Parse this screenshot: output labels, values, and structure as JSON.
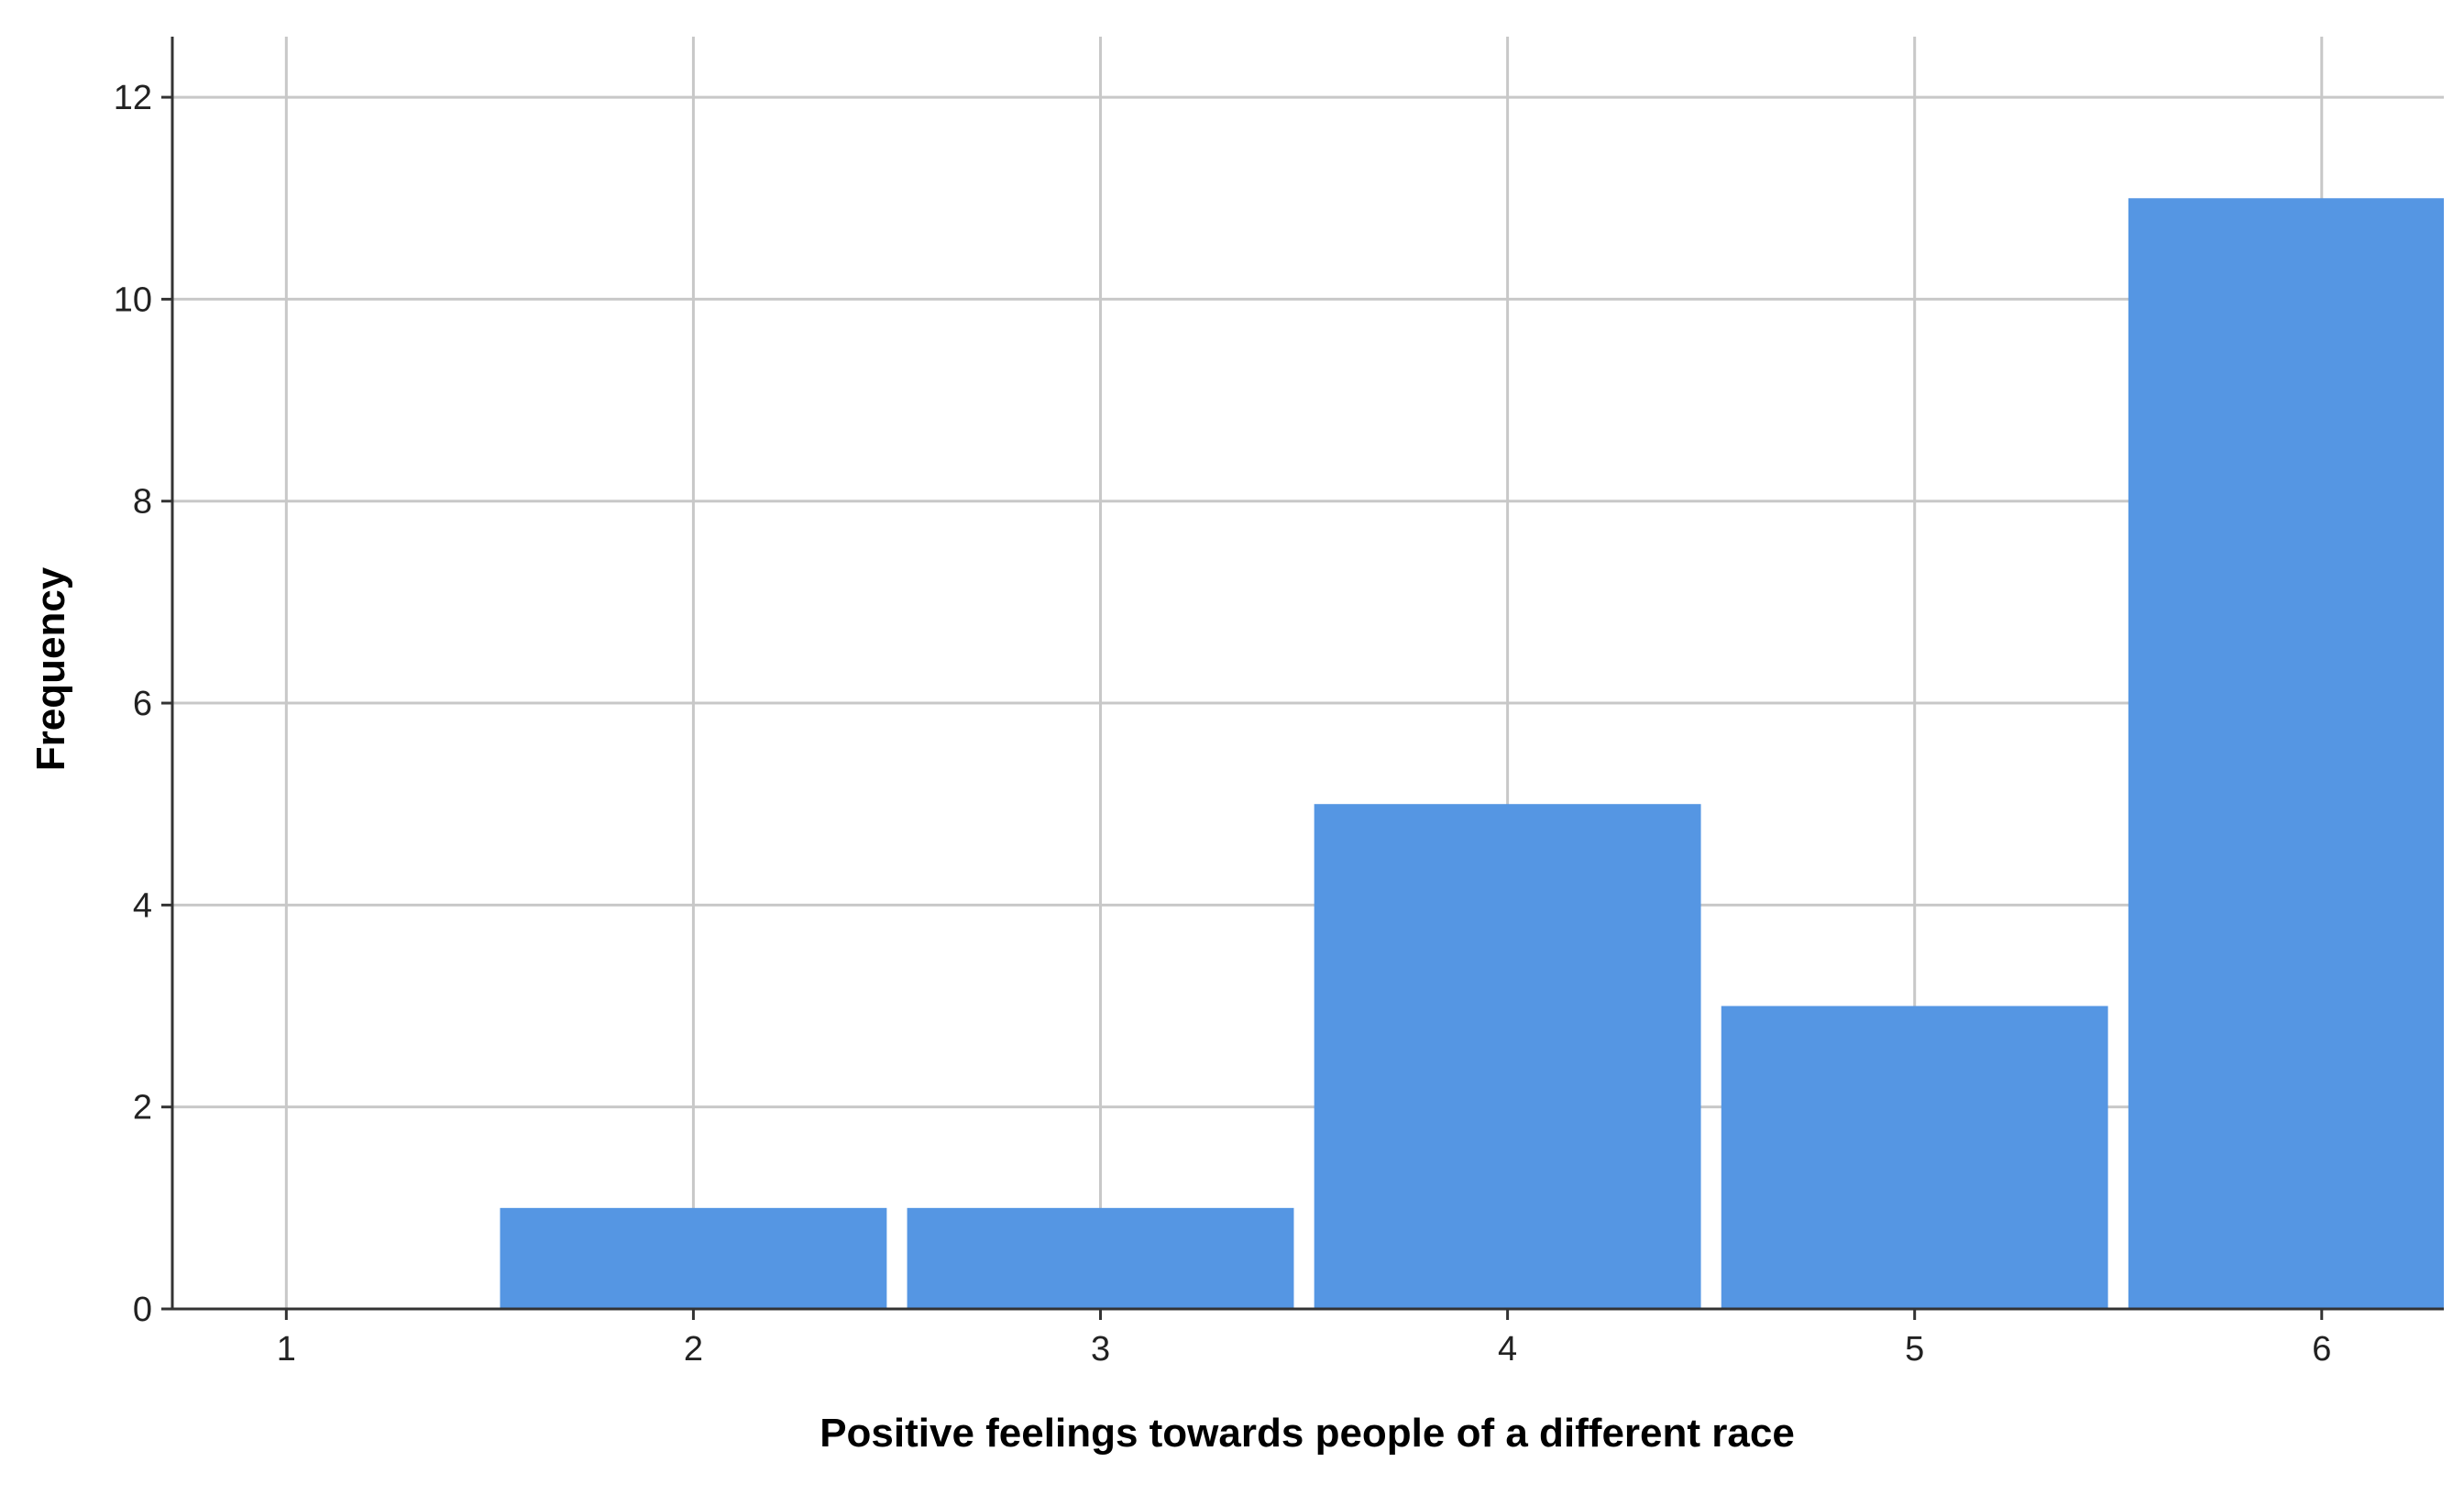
{
  "chart_data": {
    "type": "bar",
    "title": "",
    "xlabel": "Positive feelings towards people of a different race",
    "ylabel": "Frequency",
    "categories": [
      "1",
      "2",
      "3",
      "4",
      "5",
      "6"
    ],
    "values": [
      0,
      1,
      1,
      5,
      3,
      11
    ],
    "xlim": [
      0.72,
      6.3
    ],
    "ylim": [
      0,
      12.6
    ],
    "yticks": [
      0,
      2,
      4,
      6,
      8,
      10,
      12
    ],
    "xticks": [
      1,
      2,
      3,
      4,
      5,
      6
    ],
    "grid": true,
    "bar_color": "#5596e3",
    "grid_color": "#c8c8c8",
    "axis_color": "#333333"
  }
}
